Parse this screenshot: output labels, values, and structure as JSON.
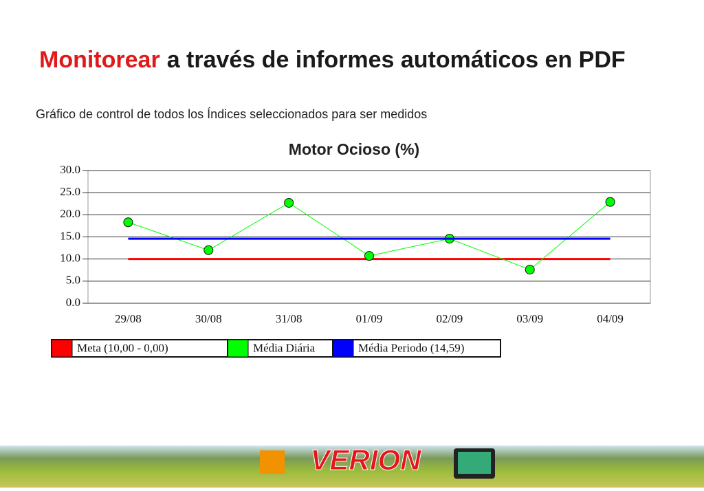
{
  "slide": {
    "title_highlight": "Monitorear",
    "title_rest": "a través de informes automáticos en PDF",
    "subtitle": "Gráfico de control de todos los Índices seleccionados para ser medidos",
    "logo": "VERION"
  },
  "chart_data": {
    "type": "line",
    "title": "Motor Ocioso (%)",
    "categories": [
      "29/08",
      "30/08",
      "31/08",
      "01/09",
      "02/09",
      "03/09",
      "04/09"
    ],
    "series": [
      {
        "name": "Meta (10,00 - 0,00)",
        "color": "#ff0000",
        "values": [
          10,
          10,
          10,
          10,
          10,
          10,
          10
        ]
      },
      {
        "name": "Média Diária",
        "color": "#00ff00",
        "marker": "circle",
        "values": [
          18.3,
          12.0,
          22.7,
          10.7,
          14.6,
          7.6,
          22.9
        ]
      },
      {
        "name": "Média Periodo (14,59)",
        "color": "#0000ff",
        "values": [
          14.59,
          14.59,
          14.59,
          14.59,
          14.59,
          14.59,
          14.59
        ]
      }
    ],
    "ylim": [
      0,
      30
    ],
    "yticks": [
      {
        "value": 0,
        "label": "0.0"
      },
      {
        "value": 5,
        "label": "5.0"
      },
      {
        "value": 10,
        "label": "10.0"
      },
      {
        "value": 15,
        "label": "15.0"
      },
      {
        "value": 20,
        "label": "20.0"
      },
      {
        "value": 25,
        "label": "25.0"
      },
      {
        "value": 30,
        "label": "30.0"
      }
    ],
    "grid": true,
    "legend": "bottom"
  }
}
